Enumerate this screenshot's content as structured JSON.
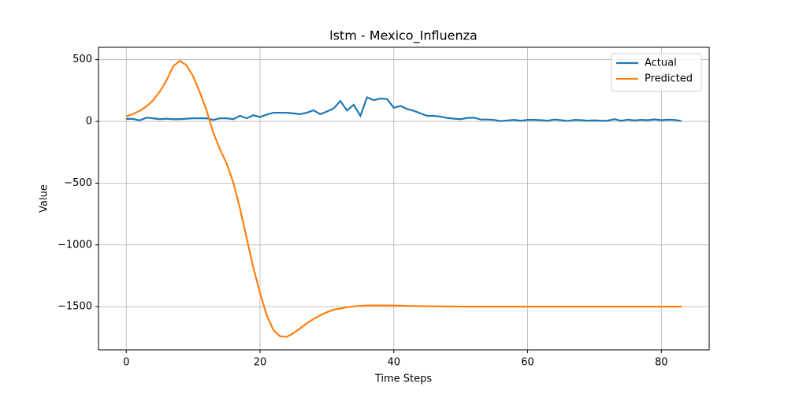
{
  "chart_data": {
    "type": "line",
    "title": "lstm - Mexico_Influenza",
    "xlabel": "Time Steps",
    "ylabel": "Value",
    "x": [
      0,
      1,
      2,
      3,
      4,
      5,
      6,
      7,
      8,
      9,
      10,
      11,
      12,
      13,
      14,
      15,
      16,
      17,
      18,
      19,
      20,
      21,
      22,
      23,
      24,
      25,
      26,
      27,
      28,
      29,
      30,
      31,
      32,
      33,
      34,
      35,
      36,
      37,
      38,
      39,
      40,
      41,
      42,
      43,
      44,
      45,
      46,
      47,
      48,
      49,
      50,
      51,
      52,
      53,
      54,
      55,
      56,
      57,
      58,
      59,
      60,
      61,
      62,
      63,
      64,
      65,
      66,
      67,
      68,
      69,
      70,
      71,
      72,
      73,
      74,
      75,
      76,
      77,
      78,
      79,
      80,
      81,
      82,
      83
    ],
    "series": [
      {
        "name": "Actual",
        "color": "#1f77b4",
        "values": [
          20,
          20,
          8,
          30,
          25,
          18,
          22,
          18,
          18,
          22,
          25,
          25,
          25,
          12,
          25,
          25,
          18,
          45,
          25,
          50,
          35,
          55,
          70,
          70,
          70,
          65,
          58,
          70,
          90,
          58,
          80,
          105,
          165,
          88,
          135,
          45,
          195,
          172,
          185,
          180,
          110,
          125,
          100,
          85,
          65,
          45,
          45,
          38,
          28,
          22,
          18,
          28,
          30,
          15,
          15,
          12,
          2,
          8,
          12,
          5,
          12,
          12,
          10,
          5,
          15,
          10,
          3,
          12,
          10,
          6,
          8,
          5,
          6,
          18,
          5,
          14,
          8,
          12,
          10,
          16,
          10,
          14,
          12,
          3
        ]
      },
      {
        "name": "Predicted",
        "color": "#ff7f0e",
        "values": [
          40,
          60,
          85,
          120,
          170,
          240,
          330,
          445,
          490,
          455,
          365,
          235,
          90,
          -90,
          -225,
          -340,
          -495,
          -705,
          -945,
          -1185,
          -1390,
          -1570,
          -1690,
          -1740,
          -1745,
          -1715,
          -1675,
          -1635,
          -1600,
          -1570,
          -1545,
          -1525,
          -1515,
          -1505,
          -1498,
          -1493,
          -1490,
          -1490,
          -1490,
          -1490,
          -1491,
          -1492,
          -1494,
          -1495,
          -1496,
          -1497,
          -1498,
          -1498,
          -1499,
          -1499,
          -1500,
          -1500,
          -1500,
          -1500,
          -1500,
          -1500,
          -1500,
          -1500,
          -1500,
          -1500,
          -1500,
          -1500,
          -1500,
          -1500,
          -1500,
          -1500,
          -1500,
          -1500,
          -1500,
          -1500,
          -1500,
          -1500,
          -1500,
          -1500,
          -1500,
          -1500,
          -1500,
          -1500,
          -1500,
          -1500,
          -1500,
          -1500,
          -1500,
          -1500
        ]
      }
    ],
    "xlim": [
      -4.15,
      87.15
    ],
    "xticks": [
      0,
      20,
      40,
      60,
      80
    ],
    "ylim": [
      -1850,
      600
    ],
    "yticks": [
      {
        "value": -1500,
        "label": "−1500"
      },
      {
        "value": -1000,
        "label": "−1000"
      },
      {
        "value": -500,
        "label": "−500"
      },
      0,
      500
    ],
    "grid": true,
    "legend": "upper right"
  }
}
